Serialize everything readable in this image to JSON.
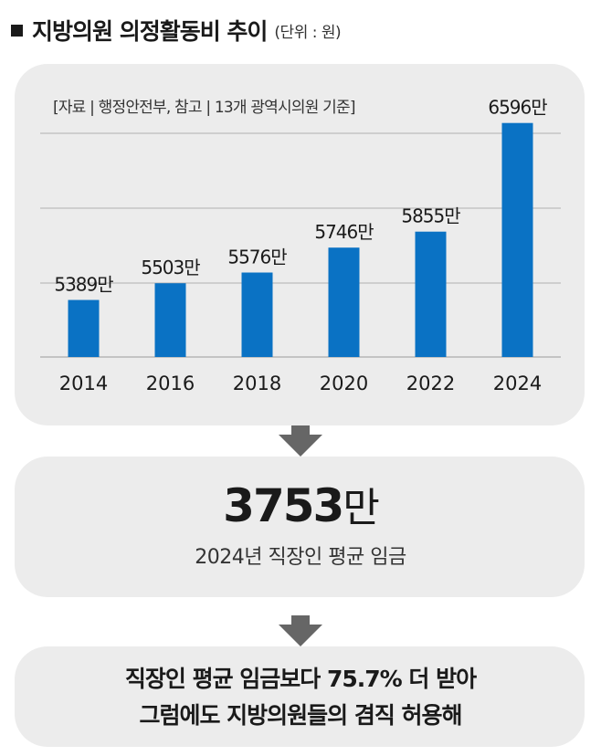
{
  "header": {
    "title": "지방의원 의정활동비 추이",
    "unit": "(단위 : 원)"
  },
  "source": "[자료 | 행정안전부, 참고 | 13개 광역시의원 기준]",
  "chart_data": {
    "type": "bar",
    "categories": [
      "2014",
      "2016",
      "2018",
      "2020",
      "2022",
      "2024"
    ],
    "values": [
      5389,
      5503,
      5576,
      5746,
      5855,
      6596
    ],
    "data_labels": [
      "5389만",
      "5503만",
      "5576만",
      "5746만",
      "5855만",
      "6596만"
    ],
    "value_unit": "만 원",
    "ylim": [
      5000,
      6700
    ],
    "grid": true,
    "bar_color": "#0a72c4"
  },
  "stat": {
    "value": "3753",
    "value_suffix": "만",
    "label": "2024년 직장인 평균 임금"
  },
  "note": {
    "line1": "직장인 평균 임금보다 75.7% 더 받아",
    "line2": "그럼에도 지방의원들의 겸직 허용해"
  }
}
